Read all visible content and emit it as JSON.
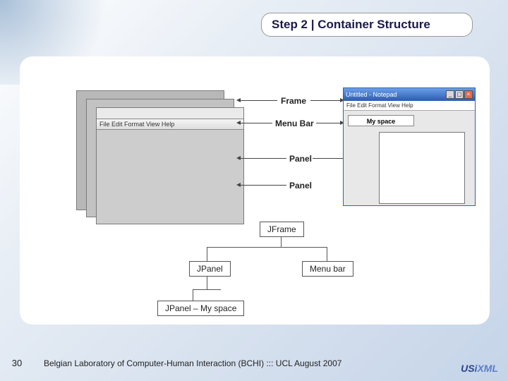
{
  "title": "Step 2 | Container Structure",
  "labels": {
    "frame": "Frame",
    "menubar": "Menu Bar",
    "panel1": "Panel",
    "panel2": "Panel"
  },
  "pad_menu": "File  Edit  Format  View  Help",
  "window": {
    "title": "Untitled - Notepad",
    "menu": "File  Edit  Format  View  Help",
    "myspace": "My space"
  },
  "tree": {
    "jframe": "JFrame",
    "jpanel": "JPanel",
    "menubar": "Menu bar",
    "jpanel_my": "JPanel – My space"
  },
  "footer": {
    "page": "30",
    "text": "Belgian Laboratory of Computer-Human Interaction (BCHI) ::: UCL  August 2007"
  },
  "logo": {
    "a": "US",
    "b": "XML",
    "tag": ""
  },
  "colors": {
    "bg_grad_start": "#ffffff",
    "bg_grad_end": "#c5d4e8",
    "title_text": "#1a1a4a",
    "win_title_grad": "#2a5cb0"
  }
}
